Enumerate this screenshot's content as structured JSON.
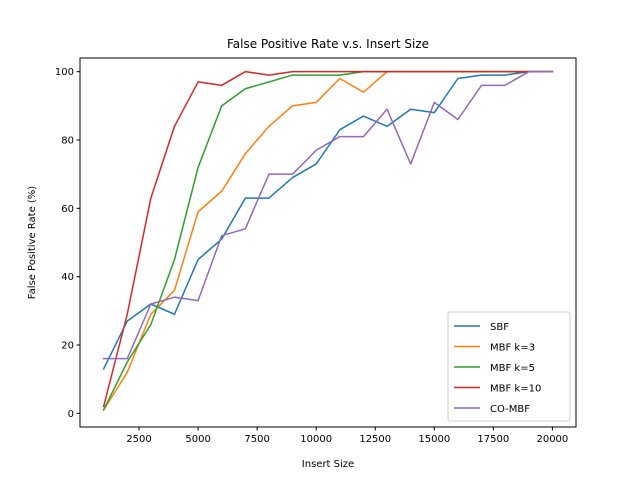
{
  "chart_data": {
    "type": "line",
    "title": "False Positive Rate v.s. Insert Size",
    "xlabel": "Insert Size",
    "ylabel": "False Positive Rate (%)",
    "xlim": [
      0,
      21000
    ],
    "ylim": [
      -4,
      104
    ],
    "xticks": [
      2500,
      5000,
      7500,
      10000,
      12500,
      15000,
      17500,
      20000
    ],
    "xtick_labels": [
      "2500",
      "5000",
      "7500",
      "10000",
      "12500",
      "15000",
      "17500",
      "20000"
    ],
    "yticks": [
      0,
      20,
      40,
      60,
      80,
      100
    ],
    "ytick_labels": [
      "0",
      "20",
      "40",
      "60",
      "80",
      "100"
    ],
    "grid": false,
    "legend_position": "lower-right",
    "x": [
      1000,
      2000,
      3000,
      4000,
      5000,
      6000,
      7000,
      8000,
      9000,
      10000,
      11000,
      12000,
      13000,
      14000,
      15000,
      16000,
      17000,
      18000,
      19000,
      20000
    ],
    "series": [
      {
        "name": "SBF",
        "color": "#1f77b4",
        "values": [
          13,
          27,
          32,
          29,
          45,
          51,
          63,
          63,
          69,
          73,
          83,
          87,
          84,
          89,
          88,
          98,
          99,
          99,
          100,
          100
        ]
      },
      {
        "name": "MBF k=3",
        "color": "#ff7f0e",
        "values": [
          1,
          12,
          29,
          36,
          59,
          65,
          76,
          84,
          90,
          91,
          98,
          94,
          100,
          100,
          100,
          100,
          100,
          100,
          100,
          100
        ]
      },
      {
        "name": "MBF k=5",
        "color": "#2ca02c",
        "values": [
          1,
          15,
          26,
          45,
          72,
          90,
          95,
          97,
          99,
          99,
          99,
          100,
          100,
          100,
          100,
          100,
          100,
          100,
          100,
          100
        ]
      },
      {
        "name": "MBF k=10",
        "color": "#d62728",
        "values": [
          2,
          29,
          63,
          84,
          97,
          96,
          100,
          99,
          100,
          100,
          100,
          100,
          100,
          100,
          100,
          100,
          100,
          100,
          100,
          100
        ]
      },
      {
        "name": "CO-MBF",
        "color": "#9467bd",
        "values": [
          16,
          16,
          32,
          34,
          33,
          52,
          54,
          70,
          70,
          77,
          81,
          81,
          89,
          73,
          91,
          86,
          96,
          96,
          100,
          100
        ]
      }
    ]
  }
}
